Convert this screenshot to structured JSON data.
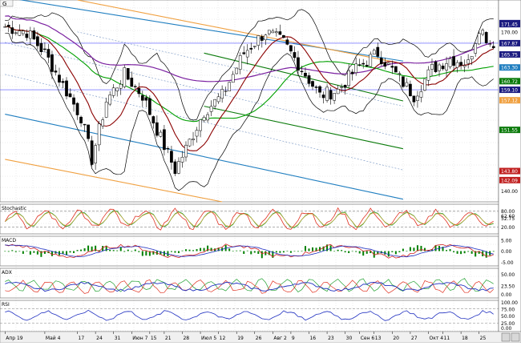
{
  "colors": {
    "bg": "#ffffff",
    "grid": "#d8d8d8",
    "up": "#ffffff",
    "down": "#000000",
    "bollinger": "#000000",
    "ma_short": "#8b0000",
    "ma_mid": "#00a000",
    "ma_long": "#7a1fa0",
    "channel_blue": "#1f7ec0",
    "channel_green": "#0a7a0a",
    "channel_orange": "#f0a040",
    "level_line": "#5050ff",
    "stoch_k": "#e03020",
    "stoch_d": "#20a030",
    "macd_line": "#d02020",
    "macd_signal": "#2030c0",
    "macd_hist": "#008000",
    "adx": "#2030c0",
    "di_plus": "#20a030",
    "di_minus": "#e03020",
    "rsi": "#2030c0"
  },
  "header": {
    "symbol": "G",
    "toolbar_icons": [
      "zoom-icon",
      "cursor-icon",
      "cross-icon",
      "pen-icon",
      "tools-icon"
    ]
  },
  "chart_data": [
    {
      "type": "candlestick",
      "panel": "price",
      "ylim": [
        138,
        176
      ],
      "price_labels": [
        "171.65",
        "171.45",
        "170.00",
        "167.87",
        "165.75",
        "163.30",
        "160.72",
        "159.10",
        "157.12",
        "151.55",
        "143.80",
        "142.09",
        "140.00"
      ],
      "highlight_labels": [
        {
          "text": "171.65",
          "color": "#1a1a80"
        },
        {
          "text": "171.45",
          "color": "#1a1a80"
        },
        {
          "text": "167.87",
          "color": "#1a1a80"
        },
        {
          "text": "165.75",
          "color": "#1a1a80"
        },
        {
          "text": "163.30",
          "color": "#1f7ec0"
        },
        {
          "text": "160.72",
          "color": "#0a7a0a"
        },
        {
          "text": "159.10",
          "color": "#1a1a80"
        },
        {
          "text": "157.12",
          "color": "#f0a040"
        },
        {
          "text": "151.55",
          "color": "#0a7a0a"
        },
        {
          "text": "143.80",
          "color": "#c02020"
        },
        {
          "text": "142.09",
          "color": "#c02020"
        }
      ],
      "plain_labels": [
        "170.00",
        "140.00"
      ],
      "level_lines": [
        167.87,
        159.1
      ],
      "channels": [
        {
          "color": "blue",
          "from": [
            0,
            176.5
          ],
          "to": [
            110,
            164.5
          ]
        },
        {
          "color": "blue",
          "from": [
            0,
            154.5
          ],
          "to": [
            110,
            138.5
          ]
        },
        {
          "color": "green",
          "from": [
            55,
            166
          ],
          "to": [
            110,
            157
          ]
        },
        {
          "color": "green",
          "from": [
            55,
            156
          ],
          "to": [
            110,
            148
          ]
        },
        {
          "color": "orange",
          "from": [
            0,
            146
          ],
          "to": [
            60,
            138
          ]
        },
        {
          "color": "orange",
          "from": [
            20,
            176
          ],
          "to": [
            110,
            164
          ]
        }
      ]
    },
    {
      "type": "line",
      "panel": "stochastic",
      "title": "Stochastic",
      "ylim": [
        0,
        100
      ],
      "levels": [
        80,
        20
      ],
      "value_labels": [
        "80.00",
        "62.60",
        "52.75",
        "20.00"
      ]
    },
    {
      "type": "bar",
      "panel": "macd",
      "title": "MACD",
      "ylim": [
        -6,
        6
      ],
      "value_labels": [
        "5.00",
        "0.00",
        "-5.00"
      ]
    },
    {
      "type": "line",
      "panel": "adx",
      "title": "ADX",
      "ylim": [
        0,
        60
      ],
      "value_labels": [
        "50.00",
        "23.50",
        "0.00"
      ]
    },
    {
      "type": "line",
      "panel": "rsi",
      "title": "RSI",
      "ylim": [
        0,
        100
      ],
      "levels": [
        75,
        25
      ],
      "value_labels": [
        "100.00",
        "75.00",
        "50.00",
        "25.00",
        "0.00"
      ]
    }
  ],
  "x_axis": {
    "ticks": [
      {
        "label": "Апр 19",
        "i": 0
      },
      {
        "label": "Май 4",
        "i": 11
      },
      {
        "label": "17",
        "i": 20
      },
      {
        "label": "24",
        "i": 25
      },
      {
        "label": "31",
        "i": 30
      },
      {
        "label": "Июн 7",
        "i": 35
      },
      {
        "label": "15",
        "i": 40
      },
      {
        "label": "21",
        "i": 44
      },
      {
        "label": "28",
        "i": 49
      },
      {
        "label": "Июл 5",
        "i": 54
      },
      {
        "label": "12",
        "i": 59
      },
      {
        "label": "19",
        "i": 64
      },
      {
        "label": "26",
        "i": 69
      },
      {
        "label": "Авг 2",
        "i": 74
      },
      {
        "label": "9",
        "i": 79
      },
      {
        "label": "16",
        "i": 84
      },
      {
        "label": "23",
        "i": 89
      },
      {
        "label": "30",
        "i": 94
      },
      {
        "label": "Сен 6",
        "i": 98
      },
      {
        "label": "13",
        "i": 102
      },
      {
        "label": "20",
        "i": 107
      },
      {
        "label": "27",
        "i": 112
      },
      {
        "label": "Окт 4",
        "i": 117
      },
      {
        "label": "11",
        "i": 121
      },
      {
        "label": "18",
        "i": 126
      },
      {
        "label": "25",
        "i": 131
      }
    ]
  }
}
